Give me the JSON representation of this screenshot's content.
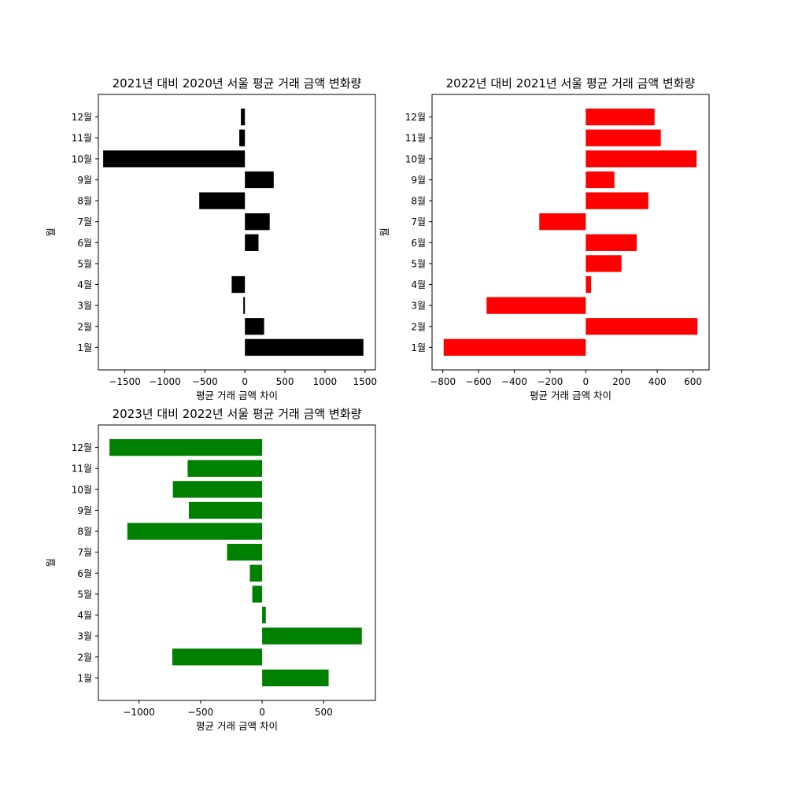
{
  "chart_data": [
    {
      "type": "bar",
      "orientation": "horizontal",
      "title": "2021년 대비 2020년 서울 평균 거래 금액 변화량",
      "xlabel": "평균 거래 금액 차이",
      "ylabel": "월",
      "color": "#000000",
      "xlim": [
        -1830,
        1630
      ],
      "xticks": [
        -1500,
        -1000,
        -500,
        0,
        500,
        1000,
        1500
      ],
      "categories": [
        "1월",
        "2월",
        "3월",
        "4월",
        "5월",
        "6월",
        "7월",
        "8월",
        "9월",
        "10월",
        "11월",
        "12월"
      ],
      "values": [
        1480,
        240,
        -20,
        -165,
        0,
        170,
        310,
        -570,
        360,
        -1770,
        -70,
        -50
      ]
    },
    {
      "type": "bar",
      "orientation": "horizontal",
      "title": "2022년 대비 2021년 서울 평균 거래 금액 변화량",
      "xlabel": "평균 거래 금액 차이",
      "ylabel": "월",
      "color": "#ff0000",
      "xlim": [
        -860,
        690
      ],
      "xticks": [
        -800,
        -600,
        -400,
        -200,
        0,
        200,
        400,
        600,
        800
      ],
      "categories": [
        "1월",
        "2월",
        "3월",
        "4월",
        "5월",
        "6월",
        "7월",
        "8월",
        "9월",
        "10월",
        "11월",
        "12월"
      ],
      "values": [
        -795,
        625,
        -555,
        30,
        200,
        285,
        -260,
        350,
        160,
        620,
        420,
        385
      ]
    },
    {
      "type": "bar",
      "orientation": "horizontal",
      "title": "2023년 대비 2022년 서울 평균 거래 금액 변화량",
      "xlabel": "평균 거래 금액 차이",
      "ylabel": "월",
      "color": "#008000",
      "xlim": [
        -1330,
        920
      ],
      "xticks": [
        -1000,
        -500,
        0,
        500
      ],
      "categories": [
        "1월",
        "2월",
        "3월",
        "4월",
        "5월",
        "6월",
        "7월",
        "8월",
        "9월",
        "10월",
        "11월",
        "12월"
      ],
      "values": [
        540,
        -730,
        810,
        30,
        -80,
        -100,
        -285,
        -1095,
        -595,
        -725,
        -605,
        -1240
      ]
    }
  ]
}
